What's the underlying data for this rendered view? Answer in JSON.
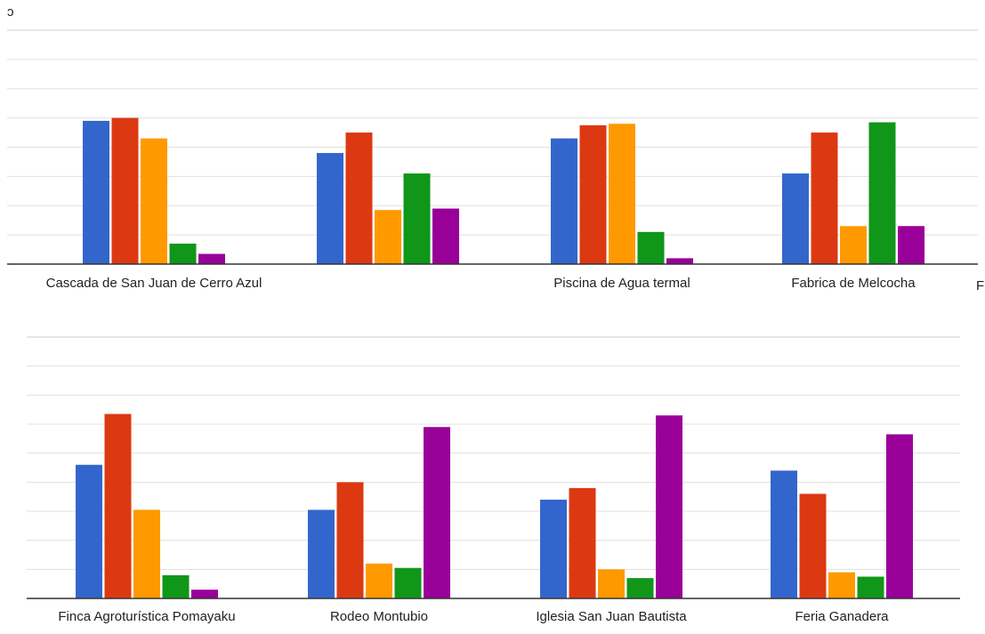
{
  "colors": [
    "#3366cc",
    "#dc3912",
    "#ff9900",
    "#109618",
    "#990099"
  ],
  "top_left_glyph": "ɔ",
  "right_edge_glyph": "F",
  "chart_data": [
    {
      "type": "bar",
      "categories": [
        "Cascada de San Juan de Cerro Azul",
        "",
        "Piscina de Agua termal",
        "Fabrica de Melcocha"
      ],
      "ylim": [
        0,
        8
      ],
      "grid": true,
      "series": [
        {
          "values": [
            4.9,
            3.8,
            4.3,
            3.1
          ]
        },
        {
          "values": [
            5.0,
            4.5,
            4.75,
            4.5
          ]
        },
        {
          "values": [
            4.3,
            1.85,
            4.8,
            1.3
          ]
        },
        {
          "values": [
            0.7,
            3.1,
            1.1,
            4.85
          ]
        },
        {
          "values": [
            0.35,
            1.9,
            0.2,
            1.3
          ]
        }
      ]
    },
    {
      "type": "bar",
      "categories": [
        "Finca Agroturística Pomayaku",
        "Rodeo Montubio",
        "Iglesia San Juan Bautista",
        "Feria Ganadera"
      ],
      "ylim": [
        0,
        9
      ],
      "grid": true,
      "series": [
        {
          "values": [
            4.6,
            3.05,
            3.4,
            4.4
          ]
        },
        {
          "values": [
            6.35,
            4.0,
            3.8,
            3.6
          ]
        },
        {
          "values": [
            3.05,
            1.2,
            1.0,
            0.9
          ]
        },
        {
          "values": [
            0.8,
            1.05,
            0.7,
            0.75
          ]
        },
        {
          "values": [
            0.3,
            5.9,
            6.3,
            5.65
          ]
        }
      ]
    }
  ]
}
